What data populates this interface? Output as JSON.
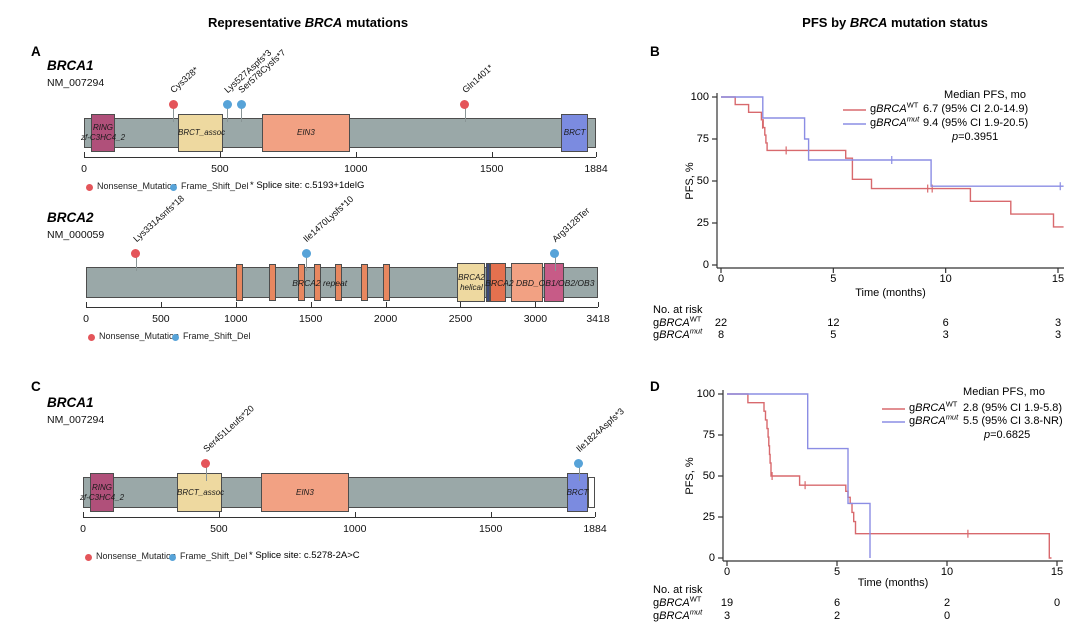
{
  "titles": {
    "left": {
      "prefix": "Representative ",
      "gene": "BRCA",
      "suffix": " mutations"
    },
    "right": {
      "prefix": "PFS by ",
      "gene": "BRCA",
      "suffix": " mutation status"
    }
  },
  "panel_labels": {
    "a": "A",
    "b": "B",
    "c": "C",
    "d": "D"
  },
  "palette": {
    "nonsense_red": "#e4555a",
    "frameshift_blue": "#57a3d8",
    "km_wt_red": "#d8696d",
    "km_mut_blue": "#8b8de4",
    "gene_bar_gray": "#9aa8a8",
    "domain_ring_pink": "#b0507a",
    "domain_khaki": "#eed9a0",
    "domain_salmon": "#f2a183",
    "domain_brct_blue": "#7b8be0",
    "repeat_orange": "#e8875f",
    "navy_sliver": "#3c4878",
    "orange_red": "#e4714f",
    "domain_magenta": "#c75b87"
  },
  "chart_data": [
    {
      "type": "lollipop",
      "id": "A1",
      "panel": "A",
      "gene": "BRCA1",
      "transcript": "NM_007294",
      "length": 1884,
      "axis_ticks": [
        0,
        500,
        1000,
        1500,
        1884
      ],
      "domains": [
        {
          "label": "RING\nzf-C3HC4_2",
          "start": 25,
          "end": 115,
          "color_key": "domain_ring_pink",
          "two_line": true
        },
        {
          "label": "BRCT_assoc",
          "start": 346,
          "end": 511,
          "color_key": "domain_khaki"
        },
        {
          "label": "EIN3",
          "start": 656,
          "end": 977,
          "color_key": "domain_salmon"
        },
        {
          "label": "BRCT",
          "start": 1756,
          "end": 1855,
          "color_key": "domain_brct_blue"
        }
      ],
      "repeats": [],
      "float_labels": [],
      "mutations": [
        {
          "label": "Cys328*",
          "pos": 328,
          "dot": "nonsense_red"
        },
        {
          "label": "Lys527Aspfs*3",
          "pos": 527,
          "dot": "frameshift_blue"
        },
        {
          "label": "Ser578Cysfs*7",
          "pos": 578,
          "dot": "frameshift_blue"
        },
        {
          "label": "Gln1401*",
          "pos": 1401,
          "dot": "nonsense_red"
        }
      ],
      "legend": [
        {
          "label": "Nonsense_Mutation",
          "color_key": "nonsense_red"
        },
        {
          "label": "Frame_Shift_Del",
          "color_key": "frameshift_blue"
        }
      ],
      "note": "* Splice site: c.5193+1delG"
    },
    {
      "type": "lollipop",
      "id": "A2",
      "panel": "A",
      "gene": "BRCA2",
      "transcript": "NM_000059",
      "length": 3418,
      "axis_ticks": [
        0,
        500,
        1000,
        1500,
        2000,
        2500,
        3000,
        3418
      ],
      "domains": [
        {
          "label": "BRCA2\nhelical",
          "start": 2479,
          "end": 2667,
          "color_key": "domain_khaki",
          "two_line": true
        },
        {
          "label": "",
          "start": 2667,
          "end": 2700,
          "color_key": "navy_sliver"
        },
        {
          "label": "",
          "start": 2700,
          "end": 2805,
          "color_key": "orange_red"
        },
        {
          "label": "",
          "start": 2835,
          "end": 3050,
          "color_key": "domain_salmon"
        },
        {
          "label": "",
          "start": 3055,
          "end": 3190,
          "color_key": "domain_magenta"
        }
      ],
      "repeats": [
        1028,
        1244,
        1440,
        1544,
        1684,
        1862,
        2007
      ],
      "float_labels": [
        {
          "text": "BRCA2 repeat",
          "pos": 1560
        },
        {
          "text": "BRCA2 DBD_OB1/OB2/OB3",
          "pos": 3030
        }
      ],
      "mutations": [
        {
          "label": "Lys331Asnfs*18",
          "pos": 331,
          "dot": "nonsense_red"
        },
        {
          "label": "Ile1470Lysfs*10",
          "pos": 1470,
          "dot": "frameshift_blue"
        },
        {
          "label": "Arg3128Ter",
          "pos": 3128,
          "dot": "frameshift_blue"
        }
      ],
      "legend": [
        {
          "label": "Nonsense_Mutation",
          "color_key": "nonsense_red"
        },
        {
          "label": "Frame_Shift_Del",
          "color_key": "frameshift_blue"
        }
      ],
      "note": ""
    },
    {
      "type": "lollipop",
      "id": "C",
      "panel": "C",
      "gene": "BRCA1",
      "transcript": "NM_007294",
      "length": 1884,
      "axis_ticks": [
        0,
        500,
        1000,
        1500,
        1884
      ],
      "domains": [
        {
          "label": "RING\nzf-C3HC4_2",
          "start": 25,
          "end": 115,
          "color_key": "domain_ring_pink",
          "two_line": true
        },
        {
          "label": "BRCT_assoc",
          "start": 346,
          "end": 511,
          "color_key": "domain_khaki"
        },
        {
          "label": "EIN3",
          "start": 656,
          "end": 977,
          "color_key": "domain_salmon"
        },
        {
          "label": "BRCT",
          "start": 1780,
          "end": 1859,
          "color_key": "domain_brct_blue"
        }
      ],
      "tail": {
        "start": 1859,
        "end": 1884
      },
      "repeats": [],
      "float_labels": [],
      "mutations": [
        {
          "label": "Ser451Leufs*20",
          "pos": 451,
          "dot": "nonsense_red"
        },
        {
          "label": "Ile1824Aspfs*3",
          "pos": 1824,
          "dot": "frameshift_blue"
        }
      ],
      "legend": [
        {
          "label": "Nonsense_Mutation",
          "color_key": "nonsense_red"
        },
        {
          "label": "Frame_Shift_Del",
          "color_key": "frameshift_blue"
        }
      ],
      "note": "* Splice site: c.5278-2A>C"
    },
    {
      "type": "km",
      "id": "B",
      "panel": "B",
      "ylabel": "PFS, %",
      "xlabel": "Time (months)",
      "yticks": [
        0,
        25,
        50,
        75,
        100
      ],
      "xticks": [
        0,
        5,
        10,
        15
      ],
      "legend_header": "Median PFS, mo",
      "pvalue": "p=0.3951",
      "series": [
        {
          "name": {
            "prefix": "g",
            "gene": "BRCA",
            "sup": "WT"
          },
          "median": "6.7 (95% CI 2.0-14.9)",
          "color_key": "km_wt_red",
          "steps": [
            [
              0.63,
              95.5
            ],
            [
              1.23,
              90.9
            ],
            [
              1.8,
              86.4
            ],
            [
              1.88,
              81.8
            ],
            [
              1.95,
              77.3
            ],
            [
              2.0,
              72.7
            ],
            [
              2.05,
              68.2
            ],
            [
              5.55,
              63.6
            ],
            [
              5.85,
              51.0
            ],
            [
              6.7,
              45.5
            ],
            [
              11.1,
              37.9
            ],
            [
              12.9,
              30.3
            ],
            [
              14.8,
              22.7
            ]
          ],
          "end": 15.25,
          "censors": [
            [
              1.85,
              83.5
            ],
            [
              2.9,
              68.2
            ],
            [
              9.2,
              45.5
            ],
            [
              9.4,
              45.5
            ]
          ]
        },
        {
          "name": {
            "prefix": "g",
            "gene": "BRCA",
            "sup": "mut"
          },
          "median": "9.4 (95% CI 1.9-20.5)",
          "color_key": "km_mut_blue",
          "steps": [
            [
              1.86,
              87.5
            ],
            [
              3.72,
              75.0
            ],
            [
              3.9,
              62.5
            ],
            [
              9.35,
              46.9
            ]
          ],
          "end": 15.25,
          "censors": [
            [
              7.6,
              62.5
            ],
            [
              15.1,
              46.9
            ]
          ]
        }
      ],
      "risk_table": {
        "title": "No. at risk",
        "times": [
          0,
          5,
          10,
          15
        ],
        "rows": [
          {
            "name": {
              "prefix": "g",
              "gene": "BRCA",
              "sup": "WT"
            },
            "values": [
              "22",
              "12",
              "6",
              "3"
            ]
          },
          {
            "name": {
              "prefix": "g",
              "gene": "BRCA",
              "sup": "mut"
            },
            "values": [
              "8",
              "5",
              "3",
              "3"
            ]
          }
        ]
      }
    },
    {
      "type": "km",
      "id": "D",
      "panel": "D",
      "ylabel": "PFS, %",
      "xlabel": "Time (months)",
      "yticks": [
        0,
        25,
        50,
        75,
        100
      ],
      "xticks": [
        0,
        5,
        10,
        15
      ],
      "legend_header": "Median PFS, mo",
      "pvalue": "p=0.6825",
      "series": [
        {
          "name": {
            "prefix": "g",
            "gene": "BRCA",
            "sup": "WT"
          },
          "median": "2.8 (95% CI 1.9-5.8)",
          "color_key": "km_wt_red",
          "steps": [
            [
              0.95,
              94.7
            ],
            [
              1.68,
              89.5
            ],
            [
              1.75,
              84.2
            ],
            [
              1.82,
              78.9
            ],
            [
              1.87,
              73.7
            ],
            [
              1.9,
              68.4
            ],
            [
              1.93,
              63.2
            ],
            [
              1.96,
              57.9
            ],
            [
              2.0,
              50.0
            ],
            [
              3.3,
              44.4
            ],
            [
              5.4,
              40.7
            ],
            [
              5.5,
              37.0
            ],
            [
              5.6,
              33.3
            ],
            [
              5.68,
              27.8
            ],
            [
              5.76,
              22.2
            ],
            [
              5.84,
              14.8
            ],
            [
              14.65,
              0
            ]
          ],
          "end": 14.75,
          "censors": [
            [
              2.05,
              50.0
            ],
            [
              3.55,
              44.4
            ],
            [
              10.95,
              14.8
            ]
          ]
        },
        {
          "name": {
            "prefix": "g",
            "gene": "BRCA",
            "sup": "mut"
          },
          "median": "5.5 (95% CI 3.8-NR)",
          "color_key": "km_mut_blue",
          "steps": [
            [
              3.67,
              66.7
            ],
            [
              5.5,
              33.3
            ],
            [
              6.5,
              0
            ]
          ],
          "end": 6.5,
          "censors": []
        }
      ],
      "risk_table": {
        "title": "No. at risk",
        "times": [
          0,
          5,
          10,
          15
        ],
        "rows": [
          {
            "name": {
              "prefix": "g",
              "gene": "BRCA",
              "sup": "WT"
            },
            "values": [
              "19",
              "6",
              "2",
              "0"
            ]
          },
          {
            "name": {
              "prefix": "g",
              "gene": "BRCA",
              "sup": "mut"
            },
            "values": [
              "3",
              "2",
              "0",
              ""
            ]
          }
        ]
      }
    }
  ]
}
